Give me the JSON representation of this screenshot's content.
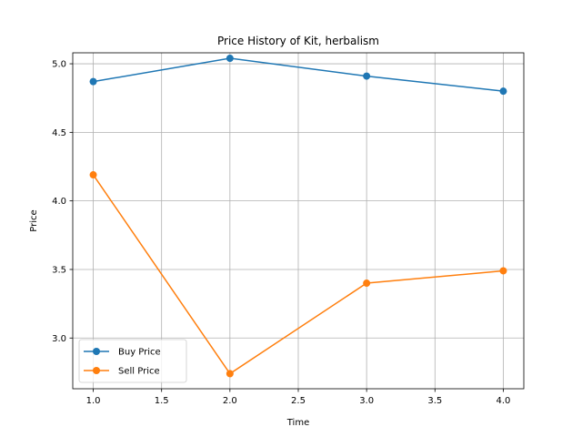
{
  "chart_data": {
    "type": "line",
    "title": "Price History of Kit, herbalism",
    "xlabel": "Time",
    "ylabel": "Price",
    "xlim": [
      0.85,
      4.15
    ],
    "ylim": [
      2.63,
      5.08
    ],
    "xticks": [
      1.0,
      1.5,
      2.0,
      2.5,
      3.0,
      3.5,
      4.0
    ],
    "xtick_labels": [
      "1.0",
      "1.5",
      "2.0",
      "2.5",
      "3.0",
      "3.5",
      "4.0"
    ],
    "yticks": [
      3.0,
      3.5,
      4.0,
      4.5,
      5.0
    ],
    "ytick_labels": [
      "3.0",
      "3.5",
      "4.0",
      "4.5",
      "5.0"
    ],
    "grid": true,
    "legend_position": "lower-left",
    "x": [
      1,
      2,
      3,
      4
    ],
    "series": [
      {
        "name": "Buy Price",
        "values": [
          4.87,
          5.04,
          4.91,
          4.8
        ],
        "color": "#1f77b4",
        "marker": "circle"
      },
      {
        "name": "Sell Price",
        "values": [
          4.19,
          2.74,
          3.4,
          3.49
        ],
        "color": "#ff7f0e",
        "marker": "circle"
      }
    ]
  }
}
